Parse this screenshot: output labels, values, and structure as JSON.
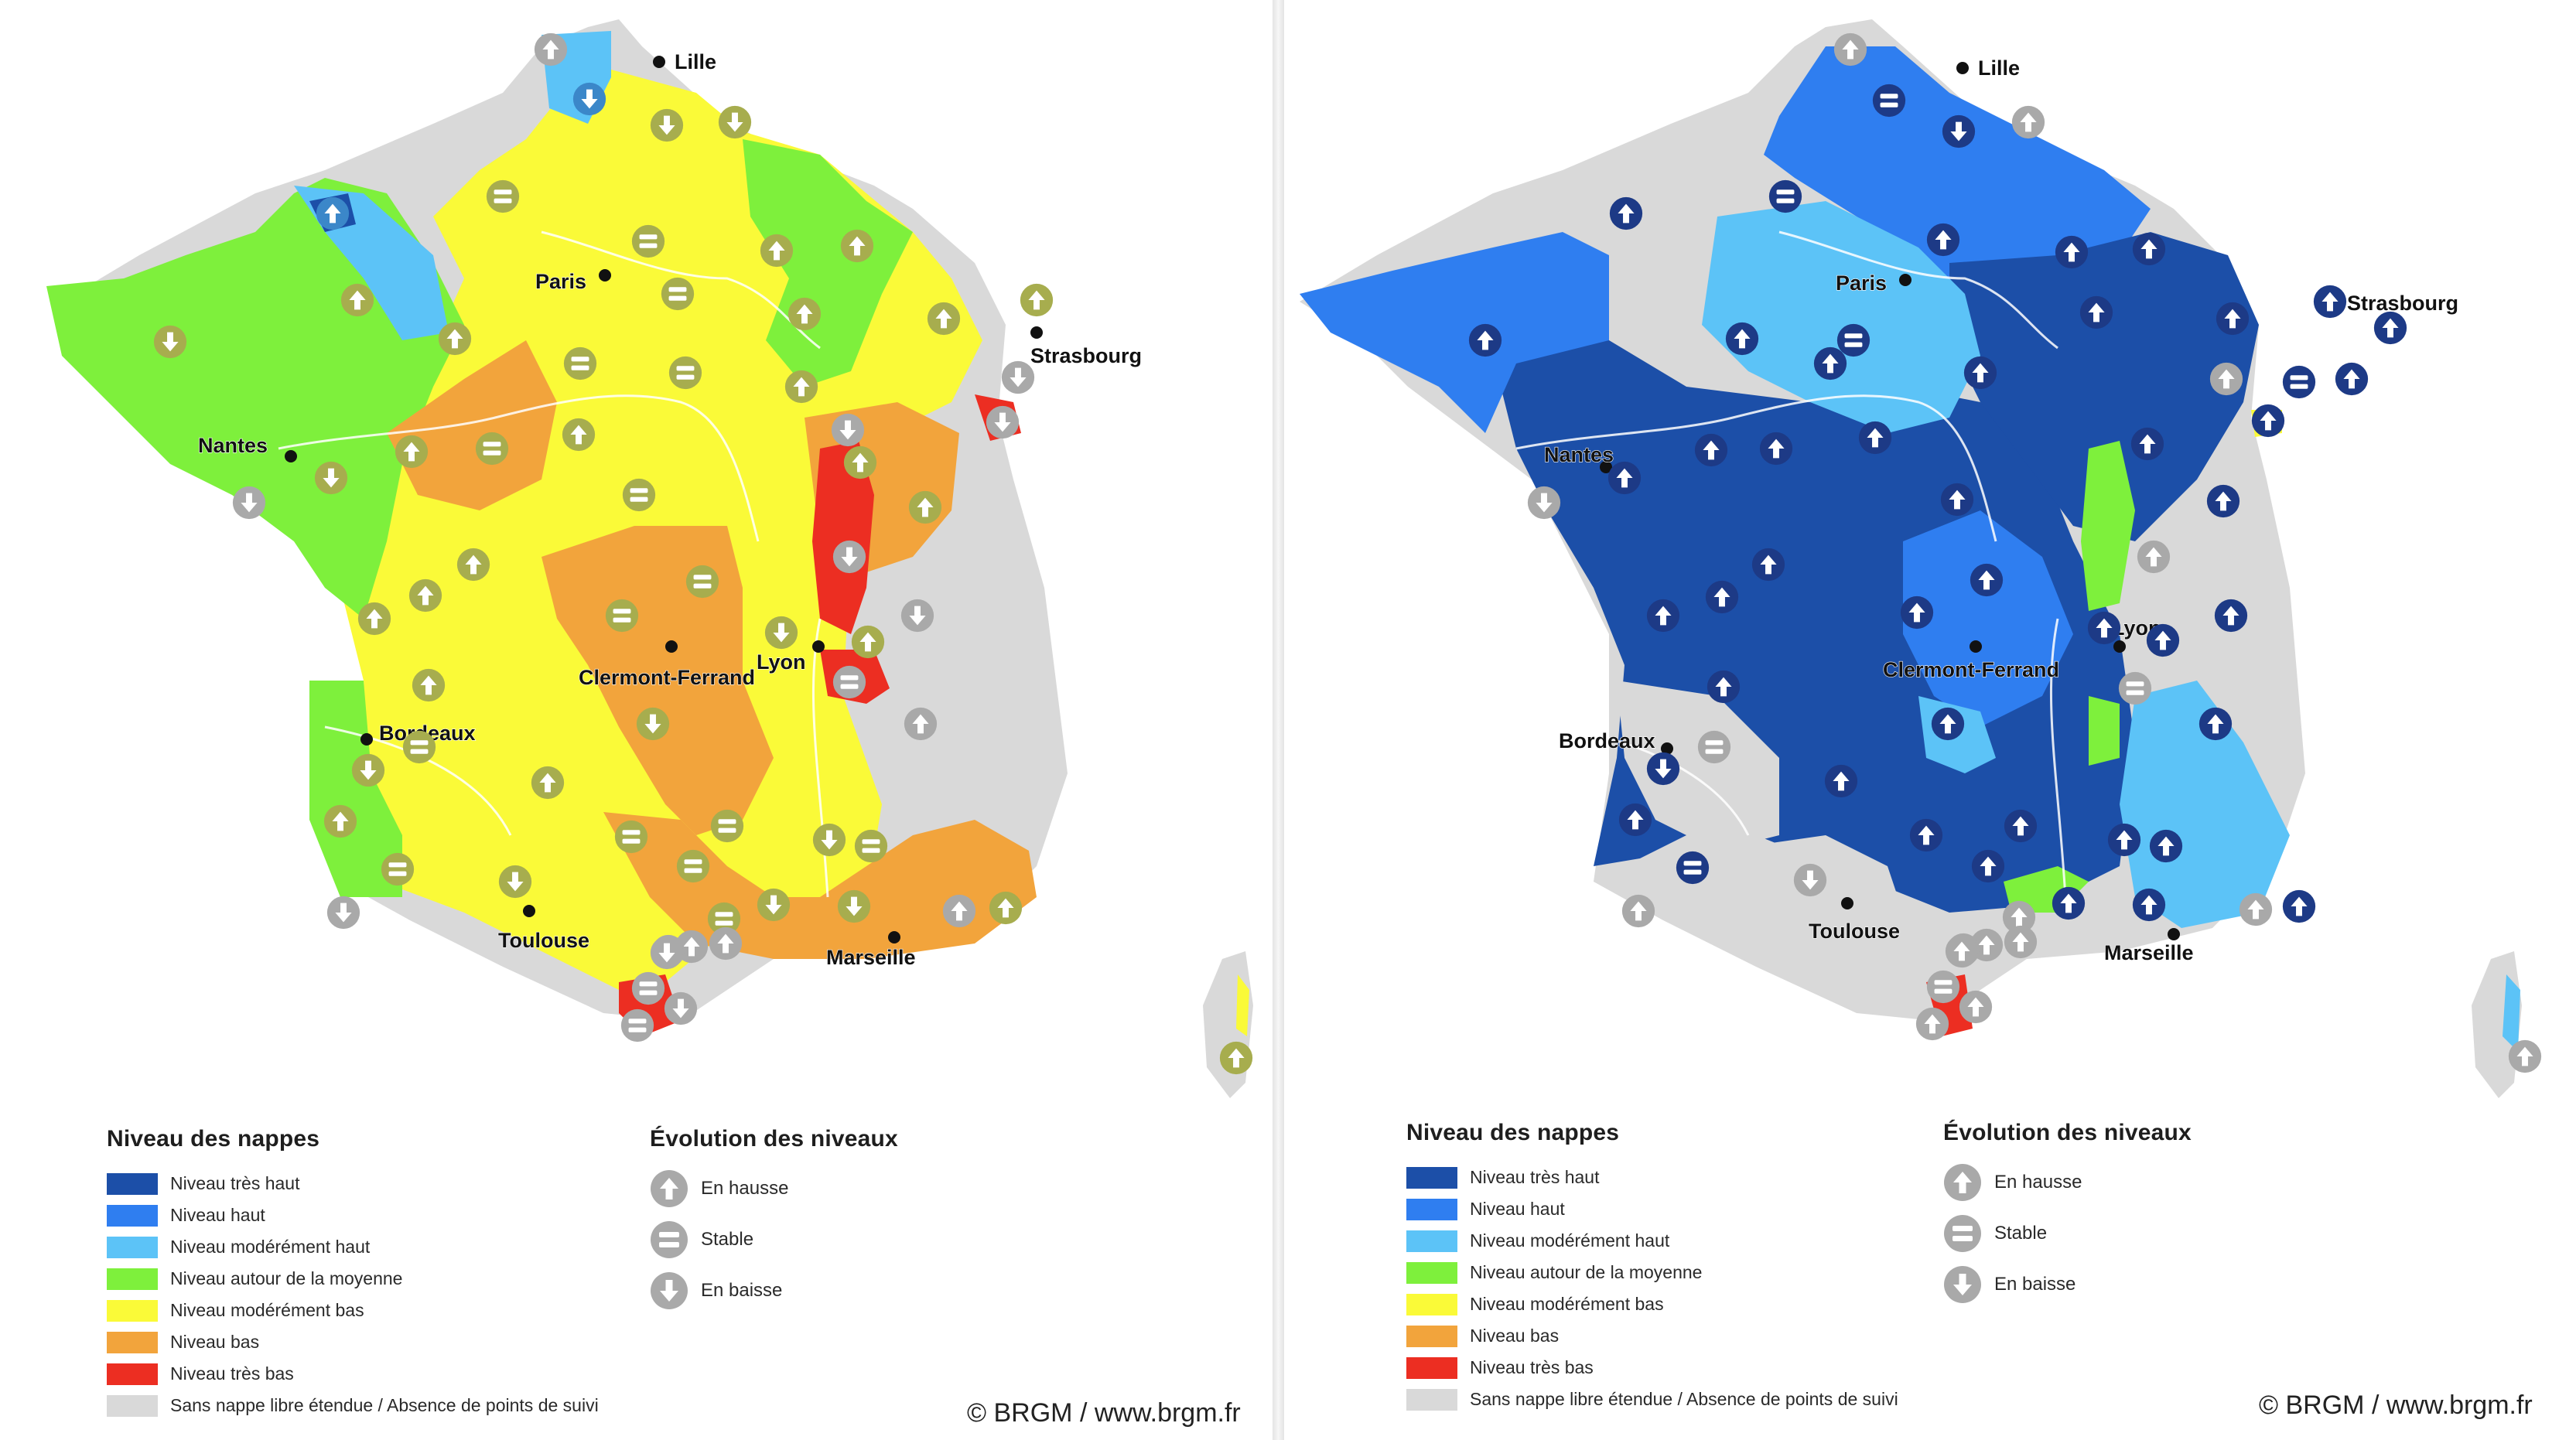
{
  "maps": [
    {
      "id": "left",
      "color_scheme": "moderately-low",
      "cities": [
        "Lille",
        "Paris",
        "Strasbourg",
        "Nantes",
        "Lyon",
        "Clermont-Ferrand",
        "Bordeaux",
        "Toulouse",
        "Marseille"
      ]
    },
    {
      "id": "right",
      "color_scheme": "very-high",
      "cities": [
        "Lille",
        "Paris",
        "Strasbourg",
        "Nantes",
        "Lyon",
        "Clermont-Ferrand",
        "Bordeaux",
        "Toulouse",
        "Marseille"
      ]
    }
  ],
  "legend": {
    "title": "Niveau des nappes",
    "items": [
      {
        "label": "Niveau très haut",
        "color": "#1c4fa8"
      },
      {
        "label": "Niveau haut",
        "color": "#2f7ef0"
      },
      {
        "label": "Niveau modérément haut",
        "color": "#5cc3f7"
      },
      {
        "label": "Niveau autour de la moyenne",
        "color": "#7ef03c"
      },
      {
        "label": "Niveau modérément bas",
        "color": "#fafa38"
      },
      {
        "label": "Niveau bas",
        "color": "#f2a43c"
      },
      {
        "label": "Niveau très bas",
        "color": "#ec2e22"
      },
      {
        "label": "Sans nappe libre étendue / Absence de points de suivi",
        "color": "#d9d9d9"
      }
    ]
  },
  "evolution": {
    "title": "Évolution des niveaux",
    "items": [
      {
        "label": "En hausse",
        "icon": "arrow-up-icon"
      },
      {
        "label": "Stable",
        "icon": "equal-icon"
      },
      {
        "label": "En baisse",
        "icon": "arrow-down-icon"
      }
    ]
  },
  "copyright": "© BRGM / www.brgm.fr",
  "colors": {
    "very_high": "#1c4fa8",
    "high": "#2f7ef0",
    "mod_high": "#5cc3f7",
    "average": "#7ef03c",
    "mod_low": "#fafa38",
    "low": "#f2a43c",
    "very_low": "#ec2e22",
    "none": "#d9d9d9",
    "indicator_grey": "#a9a9a9",
    "indicator_olive": "#a7ad4e",
    "indicator_navy": "#1d3a86"
  }
}
